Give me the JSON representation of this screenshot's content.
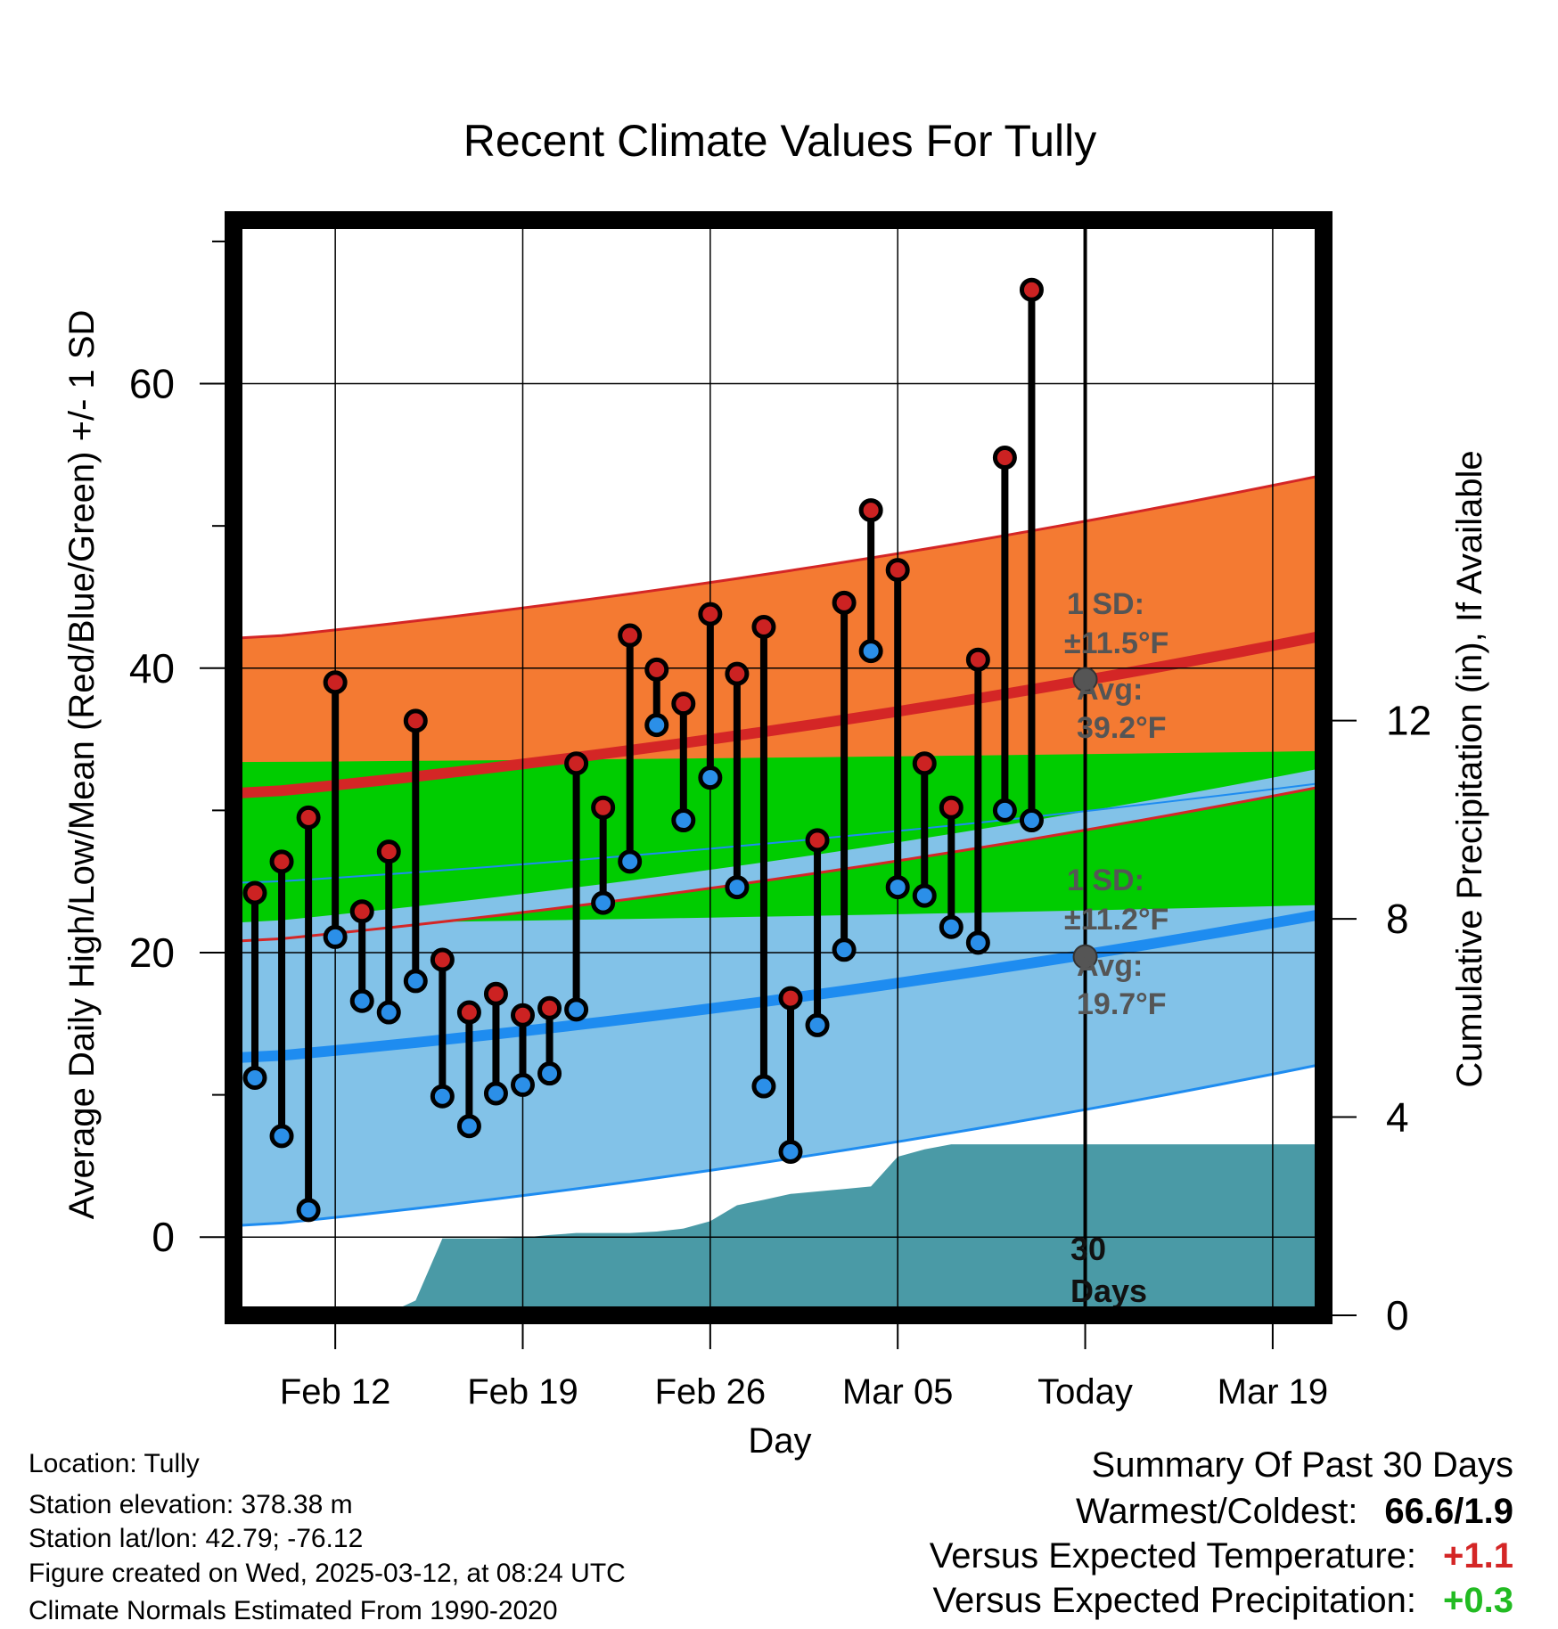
{
  "chart_data": {
    "type": "line",
    "title": "Recent Climate Values For Tully",
    "xlabel": "Day",
    "ylabel": "Average Daily High/Low/Mean (Red/Blue/Green) +/- 1 SD",
    "y2label": "Cumulative Precipitation (in), If Available",
    "x_tick_labels": [
      "Feb 12",
      "Feb 19",
      "Feb 26",
      "Mar 05",
      "Today",
      "Mar 19"
    ],
    "y_ticks": [
      "0",
      "20",
      "40",
      "60"
    ],
    "y2_ticks": [
      "0",
      "4",
      "8",
      "12"
    ],
    "ylim": [
      -5.5,
      71.5
    ],
    "y2lim": [
      0,
      22.1
    ],
    "grid": true,
    "days": [
      "2025-02-09",
      "2025-02-10",
      "2025-02-11",
      "2025-02-12",
      "2025-02-13",
      "2025-02-14",
      "2025-02-15",
      "2025-02-16",
      "2025-02-17",
      "2025-02-18",
      "2025-02-19",
      "2025-02-20",
      "2025-02-21",
      "2025-02-22",
      "2025-02-23",
      "2025-02-24",
      "2025-02-25",
      "2025-02-26",
      "2025-02-27",
      "2025-02-28",
      "2025-03-01",
      "2025-03-02",
      "2025-03-03",
      "2025-03-04",
      "2025-03-05",
      "2025-03-06",
      "2025-03-07",
      "2025-03-08",
      "2025-03-09",
      "2025-03-10",
      "2025-03-11"
    ],
    "series": [
      {
        "name": "High",
        "color": "#cc2222",
        "values": [
          24.2,
          26.4,
          29.5,
          39.0,
          22.9,
          27.1,
          36.3,
          19.5,
          15.8,
          17.1,
          15.6,
          16.1,
          33.3,
          30.2,
          42.3,
          39.9,
          37.5,
          43.8,
          39.6,
          42.9,
          16.8,
          27.9,
          44.6,
          51.1,
          46.9,
          33.3,
          30.2,
          40.6,
          54.8,
          66.6,
          null
        ]
      },
      {
        "name": "Low",
        "color": "#2b8fe8",
        "values": [
          11.2,
          7.1,
          1.9,
          21.1,
          16.6,
          15.8,
          18.0,
          9.9,
          7.8,
          10.1,
          10.7,
          11.5,
          16.0,
          23.5,
          26.4,
          36.0,
          29.3,
          32.3,
          24.6,
          10.6,
          6.0,
          14.9,
          20.2,
          41.2,
          24.6,
          24.0,
          21.8,
          20.7,
          30.0,
          29.3,
          null
        ]
      }
    ],
    "normals": {
      "start_day": "2025-02-09",
      "end_day": "2025-03-22",
      "high_avg": [
        31.2,
        42.7
      ],
      "high_sd_upper": [
        42.1,
        54.0
      ],
      "low_avg": [
        12.6,
        23.1
      ],
      "low_sd_upper": [
        24.9,
        32.2
      ],
      "low_sd_lower": [
        0.8,
        12.6
      ],
      "mean_band": [
        [
          22.0,
          33.4
        ],
        [
          23.4,
          34.2
        ]
      ],
      "high_sd_lower": [
        20.8,
        32.1
      ]
    },
    "cumulative_precip": {
      "days": [
        "2025-02-09",
        "2025-02-10",
        "2025-02-11",
        "2025-02-12",
        "2025-02-13",
        "2025-02-14",
        "2025-02-15",
        "2025-02-16",
        "2025-02-17",
        "2025-02-18",
        "2025-02-19",
        "2025-02-20",
        "2025-02-21",
        "2025-02-22",
        "2025-02-23",
        "2025-02-24",
        "2025-02-25",
        "2025-02-26",
        "2025-02-27",
        "2025-02-28",
        "2025-03-01",
        "2025-03-02",
        "2025-03-03",
        "2025-03-04",
        "2025-03-05",
        "2025-03-06",
        "2025-03-07",
        "2025-03-08",
        "2025-03-09",
        "2025-03-10",
        "2025-03-11",
        "2025-03-12",
        "2025-03-22"
      ],
      "values": [
        0,
        0,
        0,
        0,
        0.02,
        0.05,
        0.3,
        1.55,
        1.55,
        1.55,
        1.57,
        1.62,
        1.66,
        1.66,
        1.66,
        1.69,
        1.75,
        1.9,
        2.22,
        2.33,
        2.45,
        2.5,
        2.55,
        2.6,
        3.2,
        3.35,
        3.45,
        3.45,
        3.45,
        3.45,
        3.45,
        3.45,
        3.45
      ]
    },
    "today": "2025-03-12",
    "today_label": "Today",
    "days_label": [
      "30",
      "Days"
    ],
    "annotations": {
      "high": {
        "sd_label": "1 SD:",
        "sd_value": "±11.5°F",
        "avg_label": "Avg:",
        "avg_value": "39.2°F",
        "avg": 39.2
      },
      "low": {
        "sd_label": "1 SD:",
        "sd_value": "±11.2°F",
        "avg_label": "Avg:",
        "avg_value": "19.7°F",
        "avg": 19.7
      }
    },
    "colors": {
      "high_band": "#f47a32",
      "high_line": "#d42626",
      "low_band": "#82c2e8",
      "low_line": "#1e8cf0",
      "mean_band": "#00cc00",
      "dark_band": "#8c1111",
      "precip_fill": "#4a9aa6",
      "annotation": "#555555"
    }
  },
  "info": {
    "location": "Location: Tully",
    "elevation": "Station elevation: 378.38 m",
    "latlon": "Station lat/lon: 42.79; -76.12",
    "created": "Figure created on Wed, 2025-03-12, at 08:24 UTC",
    "normals": "Climate Normals Estimated From 1990-2020"
  },
  "summary": {
    "title": "Summary Of Past 30 Days",
    "warm_cold_label": "Warmest/Coldest:",
    "warm_cold_value": "66.6/1.9",
    "temp_label": "Versus Expected Temperature:",
    "temp_value": "+1.1",
    "temp_color": "#d42626",
    "precip_label": "Versus Expected Precipitation:",
    "precip_value": "+0.3",
    "precip_color": "#22bb22"
  }
}
